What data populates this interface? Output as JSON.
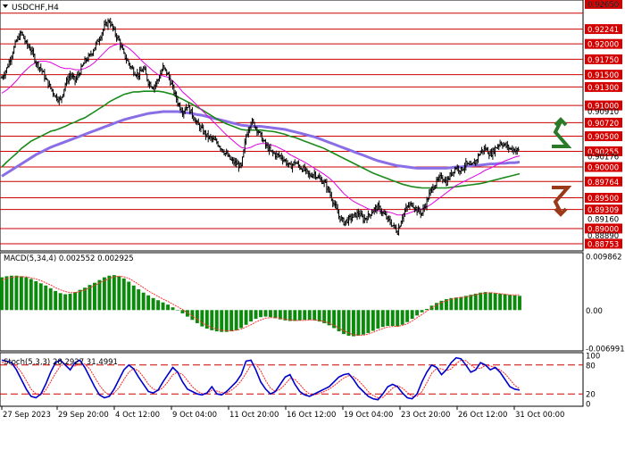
{
  "header": {
    "symbol": "USDCHF,H4"
  },
  "colors": {
    "resistance": "#cc0000",
    "candles": "#000000",
    "ma_fast": "#e000e0",
    "ma_mid": "#1a8a1a",
    "ma_slow": "#8a6ee6",
    "macd_hist": "#0b8a0b",
    "macd_signal": "#ff3333",
    "stoch_main": "#0000cc",
    "stoch_signal": "#ff2020",
    "label_bg": "#d40000",
    "arrow_up": "#2a7a2a",
    "arrow_down": "#9a3a1a"
  },
  "chart_data": [
    {
      "type": "candlestick",
      "title": "USDCHF,H4",
      "ylim": [
        0.8868,
        0.9267
      ],
      "y_ticks": [
        "0.92650",
        "0.92241",
        "0.92000",
        "0.91750",
        "0.91500",
        "0.91300",
        "0.91000",
        "0.90720",
        "0.90500",
        "0.90255",
        "0.90000",
        "0.89764",
        "0.89500",
        "0.89309",
        "0.89000",
        "0.88753"
      ],
      "price_axis_labels": [
        "0.92650",
        "0.90910",
        "0.90176",
        "0.88890",
        "0.89160"
      ],
      "resistance_levels": [
        0.925,
        0.9224,
        0.92,
        0.9175,
        0.915,
        0.913,
        0.91,
        0.9072,
        0.905,
        0.90255,
        0.9,
        0.89764,
        0.895,
        0.89309,
        0.89,
        0.88753
      ],
      "x_labels": [
        "27 Sep 2023",
        "29 Sep 20:00",
        "4 Oct 12:00",
        "9 Oct 04:00",
        "11 Oct 20:00",
        "16 Oct 12:00",
        "19 Oct 04:00",
        "23 Oct 20:00",
        "26 Oct 12:00",
        "31 Oct 00:00"
      ],
      "close_path": [
        0.9145,
        0.916,
        0.9182,
        0.9205,
        0.9218,
        0.92,
        0.919,
        0.917,
        0.916,
        0.9142,
        0.9128,
        0.9115,
        0.9108,
        0.9135,
        0.915,
        0.914,
        0.9155,
        0.9172,
        0.918,
        0.9195,
        0.921,
        0.9228,
        0.9238,
        0.922,
        0.9205,
        0.9182,
        0.9168,
        0.9155,
        0.915,
        0.916,
        0.9138,
        0.913,
        0.9142,
        0.9162,
        0.915,
        0.9128,
        0.9105,
        0.909,
        0.91,
        0.9085,
        0.907,
        0.906,
        0.905,
        0.9045,
        0.904,
        0.903,
        0.902,
        0.901,
        0.9005,
        0.9,
        0.905,
        0.9075,
        0.9065,
        0.905,
        0.9035,
        0.9025,
        0.902,
        0.9018,
        0.901,
        0.9,
        0.9008,
        0.9,
        0.8995,
        0.8985,
        0.899,
        0.898,
        0.8975,
        0.896,
        0.894,
        0.892,
        0.891,
        0.8915,
        0.892,
        0.8925,
        0.8915,
        0.892,
        0.893,
        0.8935,
        0.8925,
        0.8915,
        0.8905,
        0.8895,
        0.892,
        0.8935,
        0.894,
        0.893,
        0.8925,
        0.8945,
        0.8965,
        0.8975,
        0.8985,
        0.8975,
        0.899,
        0.9,
        0.8995,
        0.9005,
        0.9,
        0.901,
        0.9025,
        0.903,
        0.902,
        0.903,
        0.904,
        0.9035,
        0.903,
        0.9028,
        0.9026
      ],
      "ma_fast": [
        0.912,
        0.9125,
        0.9132,
        0.914,
        0.915,
        0.9158,
        0.9165,
        0.917,
        0.9172,
        0.9172,
        0.917,
        0.9166,
        0.9162,
        0.916,
        0.916,
        0.9158,
        0.9158,
        0.916,
        0.9164,
        0.917,
        0.9178,
        0.9186,
        0.9194,
        0.9198,
        0.92,
        0.9198,
        0.9193,
        0.9186,
        0.9178,
        0.917,
        0.9163,
        0.9156,
        0.915,
        0.9148,
        0.9146,
        0.914,
        0.9132,
        0.9122,
        0.9115,
        0.9108,
        0.91,
        0.9092,
        0.9084,
        0.9076,
        0.9068,
        0.906,
        0.9052,
        0.9045,
        0.9038,
        0.9032,
        0.903,
        0.9032,
        0.9036,
        0.9038,
        0.9038,
        0.9036,
        0.9034,
        0.903,
        0.9026,
        0.902,
        0.9016,
        0.9012,
        0.9008,
        0.9003,
        0.8998,
        0.8993,
        0.8988,
        0.8982,
        0.8975,
        0.8966,
        0.8957,
        0.895,
        0.8944,
        0.894,
        0.8936,
        0.8932,
        0.893,
        0.8929,
        0.8928,
        0.8927,
        0.8925,
        0.8922,
        0.8922,
        0.8924,
        0.8927,
        0.893,
        0.8932,
        0.8935,
        0.894,
        0.8946,
        0.8952,
        0.8958,
        0.8964,
        0.897,
        0.8974,
        0.8978,
        0.8982,
        0.8986,
        0.899,
        0.8995,
        0.8998,
        0.9002,
        0.9006,
        0.901,
        0.9013,
        0.9016,
        0.9018
      ],
      "ma_mid": [
        0.9,
        0.9008,
        0.9015,
        0.9022,
        0.903,
        0.9036,
        0.9042,
        0.9046,
        0.905,
        0.9054,
        0.9058,
        0.906,
        0.9063,
        0.9066,
        0.907,
        0.9073,
        0.9077,
        0.908,
        0.9085,
        0.909,
        0.9095,
        0.91,
        0.9106,
        0.911,
        0.9114,
        0.9118,
        0.912,
        0.9122,
        0.9122,
        0.9123,
        0.9123,
        0.9123,
        0.9123,
        0.9122,
        0.912,
        0.9118,
        0.9114,
        0.911,
        0.9106,
        0.9102,
        0.9097,
        0.9093,
        0.9088,
        0.9083,
        0.9078,
        0.9074,
        0.907,
        0.9067,
        0.9064,
        0.9061,
        0.906,
        0.906,
        0.906,
        0.906,
        0.9059,
        0.9058,
        0.9057,
        0.9055,
        0.9053,
        0.905,
        0.9048,
        0.9045,
        0.9042,
        0.9039,
        0.9036,
        0.9033,
        0.903,
        0.9026,
        0.9022,
        0.9018,
        0.9014,
        0.901,
        0.9006,
        0.9002,
        0.8998,
        0.8994,
        0.899,
        0.8987,
        0.8984,
        0.8981,
        0.8978,
        0.8975,
        0.8972,
        0.897,
        0.8968,
        0.8967,
        0.8966,
        0.8966,
        0.8966,
        0.8966,
        0.8966,
        0.8966,
        0.8967,
        0.8968,
        0.8969,
        0.897,
        0.8971,
        0.8972,
        0.8973,
        0.8975,
        0.8977,
        0.8979,
        0.8981,
        0.8983,
        0.8985,
        0.8987,
        0.8989
      ],
      "ma_slow": [
        0.8985,
        0.899,
        0.8995,
        0.9,
        0.9005,
        0.901,
        0.9015,
        0.902,
        0.9024,
        0.9028,
        0.9032,
        0.9035,
        0.9038,
        0.9041,
        0.9044,
        0.9047,
        0.905,
        0.9053,
        0.9056,
        0.9059,
        0.9062,
        0.9065,
        0.9068,
        0.9071,
        0.9074,
        0.9077,
        0.9079,
        0.9081,
        0.9083,
        0.9085,
        0.9087,
        0.9088,
        0.9089,
        0.909,
        0.909,
        0.909,
        0.909,
        0.9089,
        0.9088,
        0.9087,
        0.9085,
        0.9084,
        0.9082,
        0.908,
        0.9078,
        0.9076,
        0.9074,
        0.9072,
        0.907,
        0.9068,
        0.9067,
        0.9066,
        0.9066,
        0.9066,
        0.9065,
        0.9064,
        0.9063,
        0.9062,
        0.9061,
        0.9059,
        0.9057,
        0.9055,
        0.9053,
        0.9051,
        0.9049,
        0.9046,
        0.9043,
        0.904,
        0.9037,
        0.9034,
        0.9031,
        0.9028,
        0.9025,
        0.9022,
        0.9019,
        0.9016,
        0.9013,
        0.901,
        0.9008,
        0.9006,
        0.9004,
        0.9002,
        0.9001,
        0.9,
        0.8999,
        0.8998,
        0.8998,
        0.8998,
        0.8998,
        0.8998,
        0.8998,
        0.8998,
        0.8999,
        0.9,
        0.9,
        0.9001,
        0.9002,
        0.9003,
        0.9003,
        0.9004,
        0.9005,
        0.9005,
        0.9006,
        0.9006,
        0.9007,
        0.9007,
        0.9008
      ]
    },
    {
      "type": "bar",
      "title": "MACD(5,34,4) 0.002552 0.002925",
      "ylim": [
        -0.006991,
        0.009862
      ],
      "y_ticks": [
        "0.009862",
        "0.00",
        "-0.006991"
      ],
      "hist": [
        0.006,
        0.0062,
        0.0063,
        0.0063,
        0.0062,
        0.006,
        0.0057,
        0.0053,
        0.0049,
        0.0045,
        0.004,
        0.0035,
        0.0031,
        0.0029,
        0.003,
        0.0033,
        0.0037,
        0.0041,
        0.0046,
        0.005,
        0.0055,
        0.006,
        0.0063,
        0.0064,
        0.0062,
        0.0058,
        0.0052,
        0.0045,
        0.0038,
        0.0032,
        0.0027,
        0.0022,
        0.0018,
        0.0014,
        0.001,
        0.0005,
        0.0,
        -0.0006,
        -0.0012,
        -0.0018,
        -0.0024,
        -0.003,
        -0.0034,
        -0.0037,
        -0.0039,
        -0.004,
        -0.004,
        -0.0039,
        -0.0037,
        -0.0033,
        -0.0027,
        -0.0021,
        -0.0016,
        -0.0013,
        -0.0012,
        -0.0013,
        -0.0015,
        -0.0017,
        -0.0019,
        -0.002,
        -0.002,
        -0.0019,
        -0.0018,
        -0.0018,
        -0.0019,
        -0.0021,
        -0.0024,
        -0.0028,
        -0.0033,
        -0.0039,
        -0.0044,
        -0.0047,
        -0.0048,
        -0.0047,
        -0.0045,
        -0.0042,
        -0.0038,
        -0.0034,
        -0.0031,
        -0.0029,
        -0.0029,
        -0.003,
        -0.0027,
        -0.0022,
        -0.0016,
        -0.001,
        -0.0004,
        0.0002,
        0.0008,
        0.0013,
        0.0017,
        0.002,
        0.0022,
        0.0023,
        0.0024,
        0.0026,
        0.0028,
        0.003,
        0.0032,
        0.0033,
        0.0032,
        0.0031,
        0.003,
        0.0029,
        0.0028,
        0.0027,
        0.0026
      ],
      "signal": [
        0.0055,
        0.0058,
        0.006,
        0.0061,
        0.0061,
        0.0061,
        0.0059,
        0.0057,
        0.0054,
        0.005,
        0.0046,
        0.0041,
        0.0037,
        0.0034,
        0.0032,
        0.0032,
        0.0034,
        0.0037,
        0.0041,
        0.0045,
        0.005,
        0.0054,
        0.0058,
        0.0061,
        0.0062,
        0.0061,
        0.0058,
        0.0053,
        0.0047,
        0.0041,
        0.0035,
        0.003,
        0.0025,
        0.002,
        0.0016,
        0.0011,
        0.0006,
        0.0001,
        -0.0005,
        -0.0011,
        -0.0017,
        -0.0023,
        -0.0028,
        -0.0032,
        -0.0035,
        -0.0037,
        -0.0038,
        -0.0038,
        -0.0037,
        -0.0035,
        -0.0031,
        -0.0027,
        -0.0022,
        -0.0018,
        -0.0015,
        -0.0014,
        -0.0014,
        -0.0015,
        -0.0017,
        -0.0018,
        -0.0019,
        -0.0019,
        -0.0019,
        -0.0018,
        -0.0018,
        -0.0019,
        -0.0021,
        -0.0024,
        -0.0028,
        -0.0033,
        -0.0038,
        -0.0042,
        -0.0045,
        -0.0046,
        -0.0046,
        -0.0044,
        -0.0041,
        -0.0037,
        -0.0034,
        -0.0031,
        -0.003,
        -0.003,
        -0.0028,
        -0.0025,
        -0.002,
        -0.0014,
        -0.0008,
        -0.0002,
        0.0004,
        0.0009,
        0.0014,
        0.0017,
        0.002,
        0.0022,
        0.0023,
        0.0024,
        0.0026,
        0.0028,
        0.003,
        0.0031,
        0.0032,
        0.0031,
        0.003,
        0.0029,
        0.0028,
        0.0028,
        0.0028
      ]
    },
    {
      "type": "line",
      "title": "Stoch(5,3,3) 28.2927 31.4991",
      "ylim": [
        0,
        100
      ],
      "y_ticks": [
        "100",
        "80",
        "20",
        "0"
      ],
      "levels": [
        80,
        20
      ],
      "k": [
        90,
        88,
        85,
        70,
        50,
        30,
        15,
        12,
        20,
        40,
        65,
        85,
        90,
        80,
        70,
        85,
        90,
        75,
        55,
        35,
        18,
        12,
        15,
        30,
        50,
        70,
        80,
        72,
        55,
        40,
        25,
        22,
        28,
        45,
        60,
        75,
        65,
        45,
        30,
        25,
        20,
        18,
        22,
        35,
        20,
        18,
        25,
        35,
        45,
        60,
        88,
        90,
        70,
        45,
        30,
        20,
        25,
        40,
        55,
        60,
        40,
        25,
        18,
        15,
        20,
        25,
        30,
        35,
        45,
        55,
        60,
        62,
        50,
        35,
        25,
        15,
        10,
        8,
        20,
        35,
        40,
        35,
        22,
        12,
        10,
        20,
        45,
        65,
        80,
        75,
        60,
        70,
        85,
        95,
        93,
        80,
        65,
        70,
        85,
        80,
        70,
        75,
        65,
        50,
        35,
        30,
        28
      ],
      "d": [
        85,
        86,
        85,
        78,
        65,
        48,
        30,
        20,
        18,
        28,
        45,
        63,
        78,
        83,
        80,
        78,
        83,
        82,
        72,
        55,
        38,
        25,
        17,
        22,
        33,
        50,
        65,
        73,
        68,
        55,
        40,
        30,
        27,
        33,
        45,
        60,
        65,
        60,
        48,
        35,
        26,
        21,
        21,
        28,
        26,
        23,
        22,
        28,
        36,
        47,
        63,
        80,
        82,
        68,
        48,
        32,
        25,
        30,
        40,
        52,
        50,
        40,
        28,
        20,
        18,
        21,
        25,
        30,
        37,
        45,
        53,
        58,
        56,
        48,
        37,
        25,
        17,
        12,
        13,
        22,
        32,
        37,
        32,
        23,
        15,
        15,
        25,
        43,
        63,
        73,
        72,
        68,
        72,
        83,
        90,
        89,
        80,
        73,
        73,
        79,
        78,
        75,
        70,
        62,
        50,
        38,
        31
      ]
    }
  ]
}
